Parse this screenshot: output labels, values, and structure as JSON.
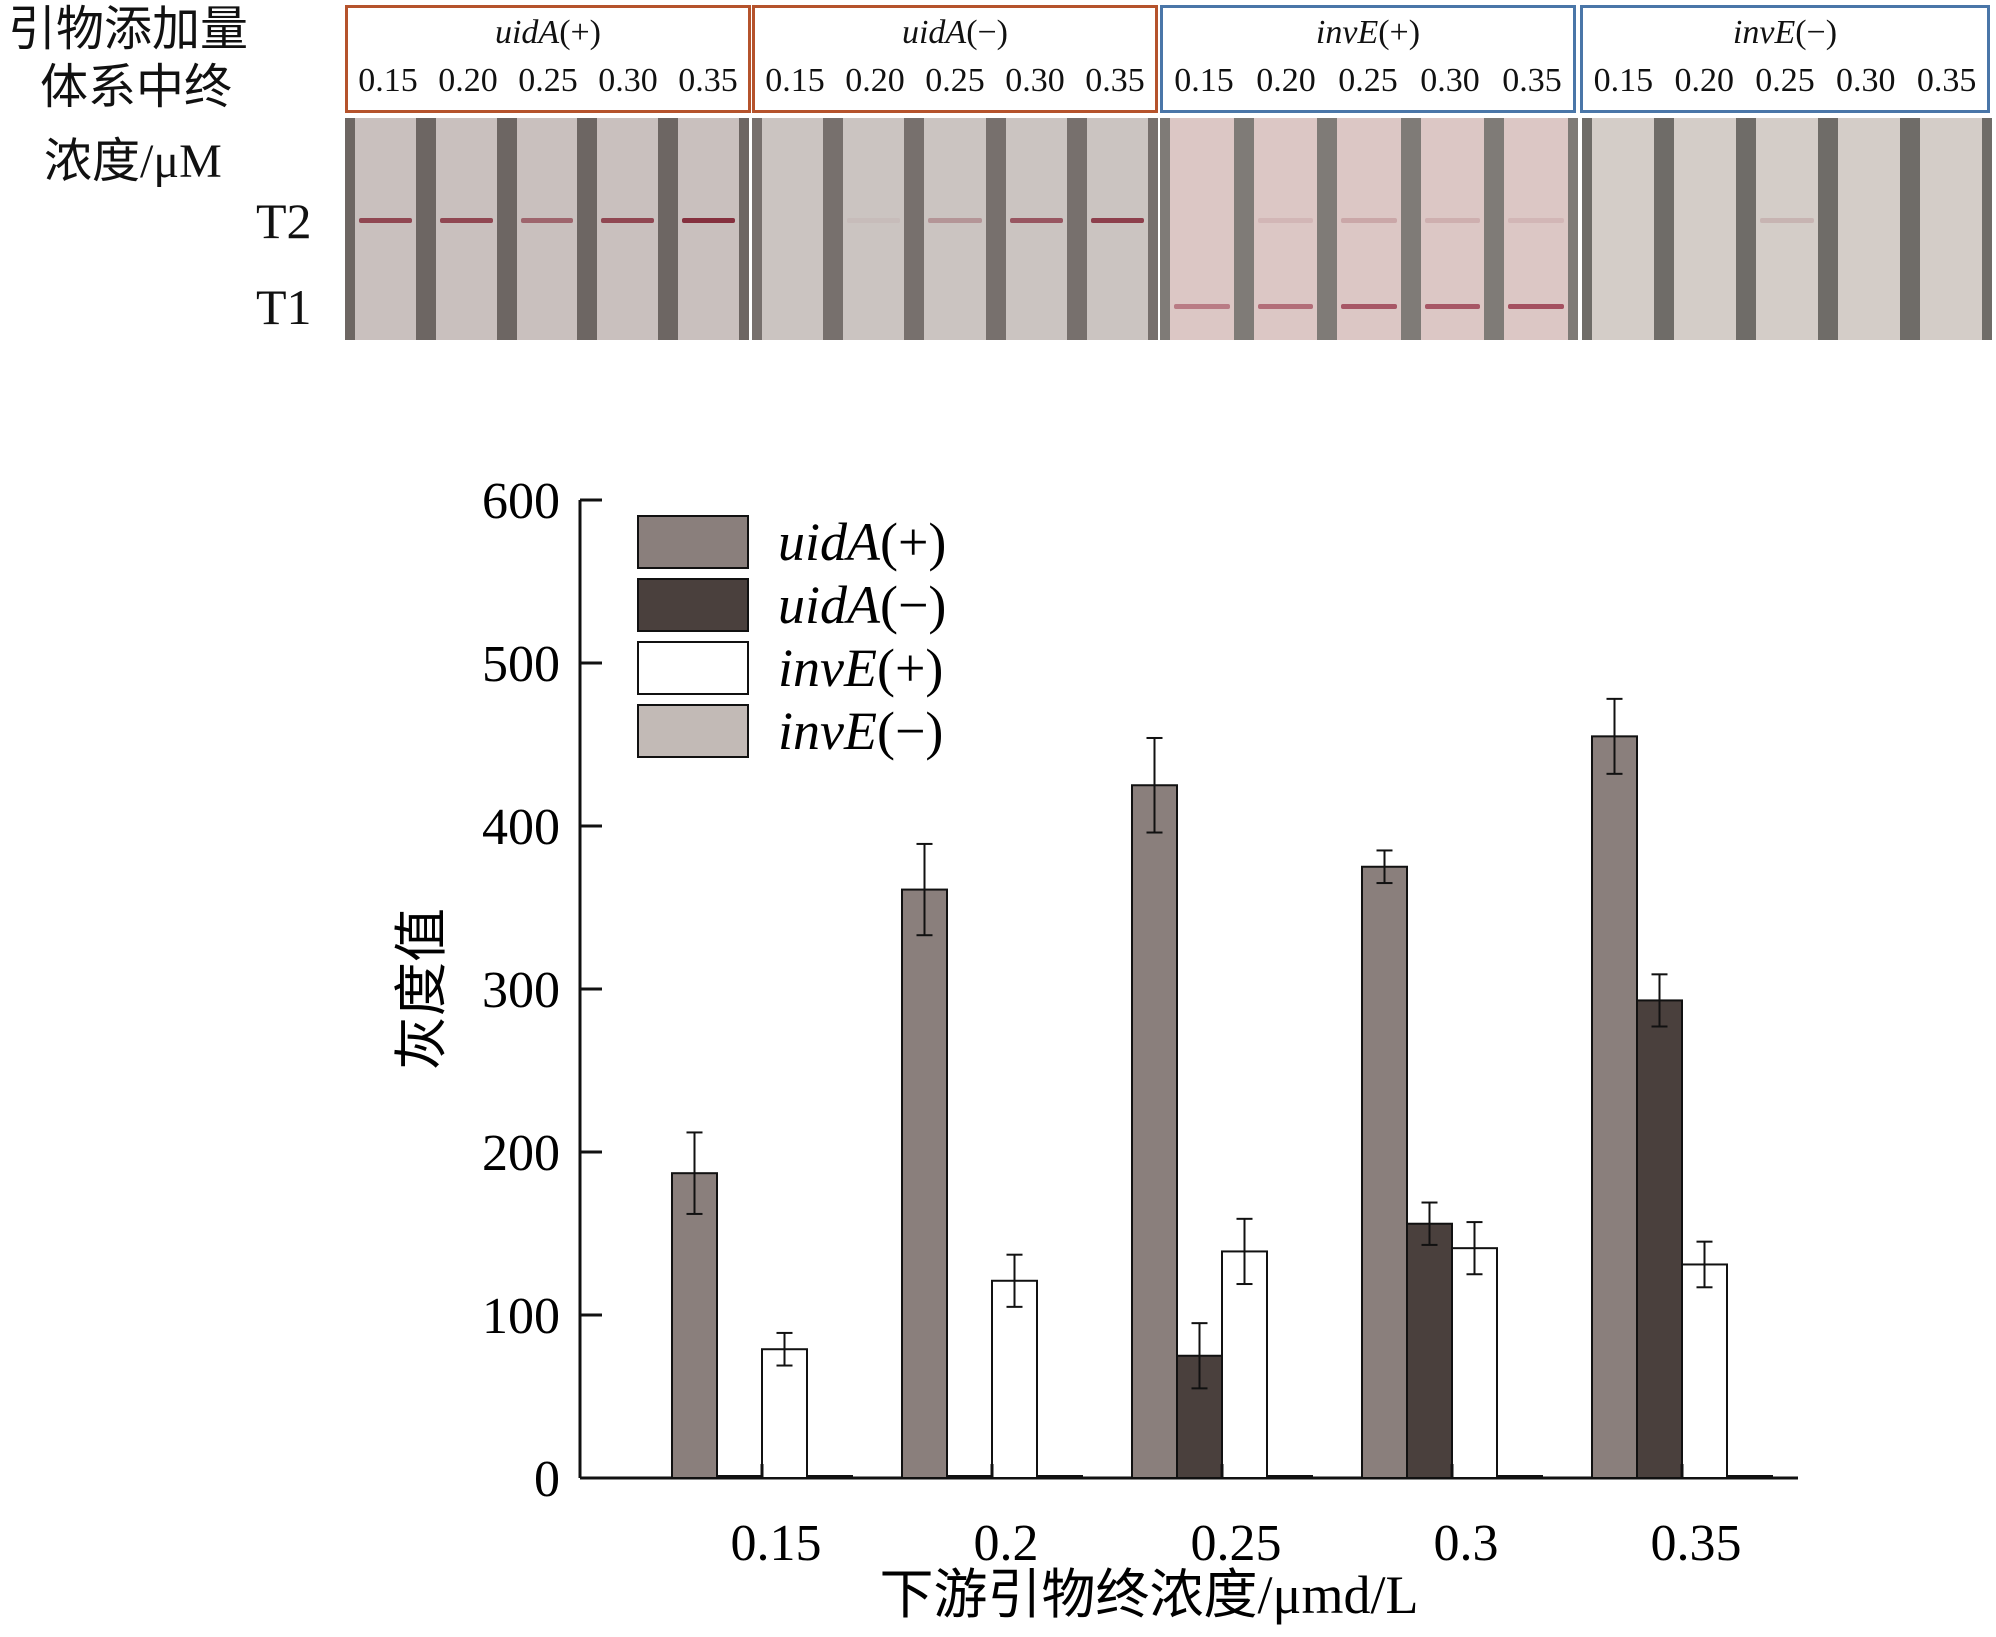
{
  "test_strips": {
    "row_labels": [
      "引物添加量",
      "体系中终",
      "浓度/μM"
    ],
    "band_labels": {
      "t2": "T2",
      "t1": "T1"
    },
    "groups": [
      {
        "name": "uidA",
        "sign": "(+)",
        "border_color": "#b5532c",
        "strip_color": "#c9c0be",
        "divider_color": "#6d6663",
        "concentrations": [
          "0.15",
          "0.20",
          "0.25",
          "0.30",
          "0.35"
        ],
        "t2_intensity": [
          0.8,
          0.8,
          0.6,
          0.8,
          0.95
        ],
        "t1_intensity": [
          0,
          0,
          0,
          0,
          0
        ]
      },
      {
        "name": "uidA",
        "sign": "(−)",
        "border_color": "#b5532c",
        "strip_color": "#cbc4c1",
        "divider_color": "#77706d",
        "concentrations": [
          "0.15",
          "0.20",
          "0.25",
          "0.30",
          "0.35"
        ],
        "t2_intensity": [
          0,
          0.05,
          0.3,
          0.7,
          0.85
        ],
        "t1_intensity": [
          0,
          0,
          0,
          0,
          0
        ]
      },
      {
        "name": "invE",
        "sign": "(+)",
        "border_color": "#4a76a8",
        "strip_color": "#dcc7c5",
        "divider_color": "#7f7b77",
        "concentrations": [
          "0.15",
          "0.20",
          "0.25",
          "0.30",
          "0.35"
        ],
        "t2_intensity": [
          0,
          0.1,
          0.2,
          0.15,
          0.1
        ],
        "t1_intensity": [
          0.5,
          0.6,
          0.75,
          0.75,
          0.8
        ]
      },
      {
        "name": "invE",
        "sign": "(−)",
        "border_color": "#4a76a8",
        "strip_color": "#d4cdc8",
        "divider_color": "#6f6c68",
        "concentrations": [
          "0.15",
          "0.20",
          "0.25",
          "0.30",
          "0.35"
        ],
        "t2_intensity": [
          0,
          0,
          0.15,
          0,
          0
        ],
        "t1_intensity": [
          0,
          0,
          0,
          0,
          0
        ]
      }
    ]
  },
  "chart_data": {
    "type": "bar",
    "categories": [
      "0.15",
      "0.2",
      "0.25",
      "0.3",
      "0.35"
    ],
    "series": [
      {
        "name": "uidA",
        "sign": "(+)",
        "color": "#8a7f7c",
        "values": [
          187,
          361,
          425,
          375,
          455
        ],
        "errors": [
          25,
          28,
          29,
          10,
          23
        ]
      },
      {
        "name": "uidA",
        "sign": "(−)",
        "color": "#4a403d",
        "values": [
          0,
          0,
          75,
          156,
          293
        ],
        "errors": [
          0,
          0,
          20,
          13,
          16
        ]
      },
      {
        "name": "invE",
        "sign": "(+)",
        "color": "#ffffff",
        "values": [
          79,
          121,
          139,
          141,
          131
        ],
        "errors": [
          10,
          16,
          20,
          16,
          14
        ]
      },
      {
        "name": "invE",
        "sign": "(−)",
        "color": "#c2bab6",
        "values": [
          0,
          0,
          0,
          0,
          0
        ],
        "errors": [
          0,
          0,
          0,
          0,
          0
        ]
      }
    ],
    "ylabel": "灰度值",
    "xlabel": "下游引物终浓度/μmd/L",
    "ylim": [
      0,
      600
    ],
    "yticks": [
      0,
      100,
      200,
      300,
      400,
      500,
      600
    ],
    "legend_position": "top-left",
    "grid": false
  }
}
